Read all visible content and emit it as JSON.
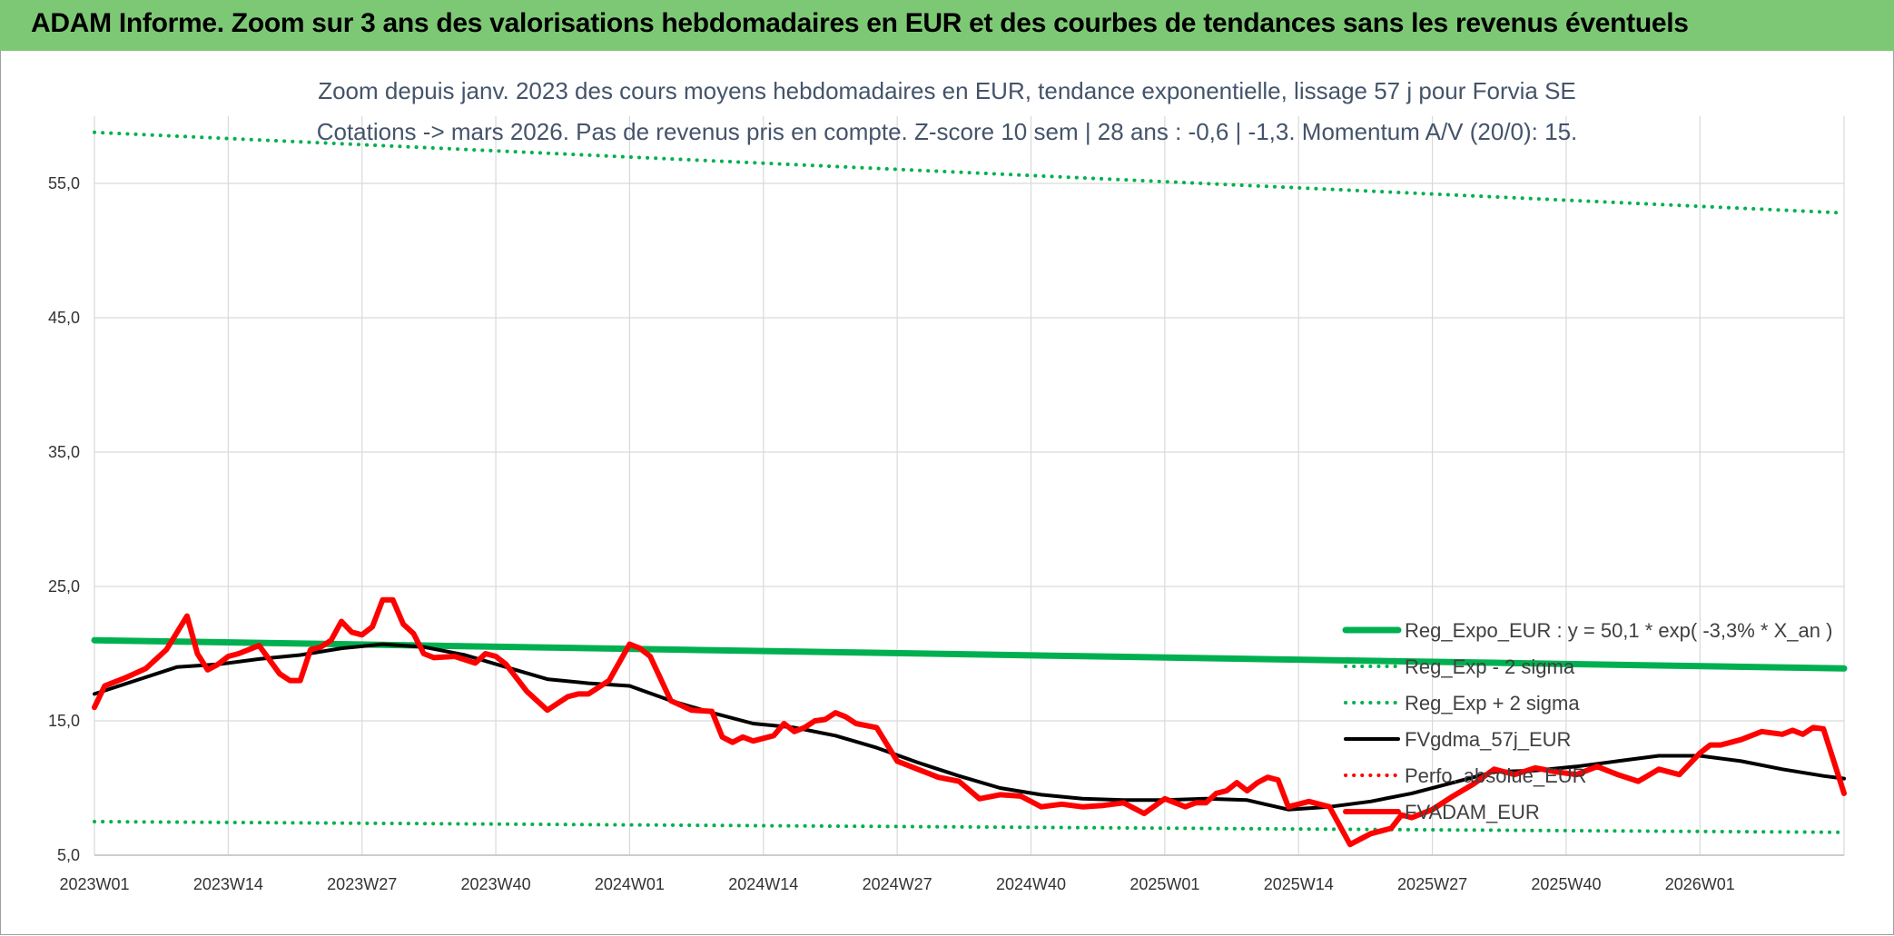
{
  "banner": {
    "title": "ADAM Informe. Zoom sur 3 ans des valorisations hebdomadaires en EUR et des courbes de tendances sans les revenus éventuels"
  },
  "colors": {
    "banner": "#7dc874",
    "trend": "#00b050",
    "sigma": "#00b050",
    "smooth": "#000000",
    "price": "#ff0000",
    "perf": "#ff0000"
  },
  "chart_data": {
    "type": "line",
    "title": "",
    "subtitle_lines": [
      "Zoom depuis janv. 2023 des cours moyens hebdomadaires en EUR, tendance exponentielle, lissage 57 j pour Forvia SE",
      "Cotations -> mars 2026. Pas de revenus pris en compte. Z-score 10 sem | 28 ans : -0,6 | -1,3. Momentum A/V (20/0): 15."
    ],
    "xlabel": "",
    "ylabel": "",
    "ylim": [
      5,
      60
    ],
    "y_ticks": [
      "5,0",
      "15,0",
      "25,0",
      "35,0",
      "45,0",
      "55,0"
    ],
    "x_ticks": [
      "2023W01",
      "2023W14",
      "2023W27",
      "2023W40",
      "2024W01",
      "2024W14",
      "2024W27",
      "2024W40",
      "2025W01",
      "2025W14",
      "2025W27",
      "2025W40",
      "2026W01"
    ],
    "weeks_per_tick": 13,
    "total_weeks": 170,
    "grid": true,
    "legend_position": "right",
    "series": [
      {
        "name": "Reg_Expo_EUR : y = 50,1 * exp( -3,3% *  X_an )",
        "style": "solid-thick",
        "color": "#00b050",
        "x": [
          0,
          170
        ],
        "values": [
          21.0,
          18.9
        ]
      },
      {
        "name": "Reg_Exp - 2 sigma",
        "style": "dotted",
        "color": "#00b050",
        "x": [
          0,
          170
        ],
        "values": [
          7.5,
          6.7
        ]
      },
      {
        "name": "Reg_Exp + 2 sigma",
        "style": "dotted",
        "color": "#00b050",
        "x": [
          0,
          170
        ],
        "values": [
          58.8,
          52.8
        ]
      },
      {
        "name": "FVgdma_57j_EUR",
        "style": "solid",
        "color": "#000000",
        "x": [
          0,
          4,
          8,
          12,
          16,
          20,
          24,
          28,
          32,
          36,
          40,
          44,
          48,
          52,
          56,
          60,
          64,
          68,
          72,
          76,
          80,
          84,
          88,
          92,
          96,
          100,
          104,
          108,
          112,
          116,
          120,
          124,
          128,
          132,
          136,
          140,
          144,
          148,
          152,
          156,
          160,
          164,
          168,
          170
        ],
        "values": [
          17.0,
          18.0,
          19.0,
          19.2,
          19.6,
          19.9,
          20.4,
          20.7,
          20.5,
          19.9,
          19.0,
          18.1,
          17.8,
          17.6,
          16.5,
          15.6,
          14.8,
          14.5,
          13.9,
          13.0,
          11.9,
          10.9,
          10.0,
          9.5,
          9.2,
          9.1,
          9.1,
          9.2,
          9.1,
          8.4,
          8.6,
          9.0,
          9.6,
          10.4,
          11.2,
          11.3,
          11.6,
          12.0,
          12.4,
          12.4,
          12.0,
          11.4,
          10.9,
          10.7
        ]
      },
      {
        "name": "Perfo. absolue_EUR",
        "style": "dotted",
        "color": "#ff0000",
        "x": [],
        "values": []
      },
      {
        "name": "FVADAM_EUR",
        "style": "solid-thick",
        "color": "#ff0000",
        "x": [
          0,
          1,
          3,
          5,
          7,
          9,
          10,
          11,
          12,
          13,
          14,
          16,
          18,
          19,
          20,
          21,
          22,
          23,
          24,
          25,
          26,
          27,
          28,
          29,
          30,
          31,
          32,
          33,
          35,
          37,
          38,
          39,
          40,
          42,
          44,
          46,
          47,
          48,
          50,
          52,
          53,
          54,
          56,
          58,
          60,
          61,
          62,
          63,
          64,
          66,
          67,
          68,
          69,
          70,
          71,
          72,
          73,
          74,
          76,
          78,
          80,
          82,
          84,
          86,
          88,
          90,
          92,
          94,
          96,
          98,
          100,
          102,
          104,
          106,
          107,
          108,
          109,
          110,
          111,
          112,
          113,
          114,
          115,
          116,
          117,
          118,
          120,
          122,
          124,
          126,
          127,
          128,
          130,
          132,
          134,
          136,
          138,
          140,
          142,
          144,
          146,
          148,
          150,
          152,
          154,
          156,
          157,
          158,
          160,
          162,
          164,
          165,
          166,
          167,
          168,
          170
        ],
        "values": [
          16.0,
          17.6,
          18.2,
          18.9,
          20.3,
          22.8,
          20.0,
          18.8,
          19.2,
          19.8,
          20.0,
          20.6,
          18.5,
          18.0,
          18.0,
          20.3,
          20.5,
          21.0,
          22.4,
          21.6,
          21.4,
          22.0,
          24.0,
          24.0,
          22.2,
          21.5,
          20.0,
          19.7,
          19.8,
          19.3,
          20.0,
          19.8,
          19.2,
          17.2,
          15.8,
          16.8,
          17.0,
          17.0,
          18.0,
          20.7,
          20.4,
          19.8,
          16.5,
          15.8,
          15.7,
          13.8,
          13.4,
          13.8,
          13.5,
          13.9,
          14.8,
          14.2,
          14.5,
          15.0,
          15.1,
          15.6,
          15.3,
          14.8,
          14.5,
          12.0,
          11.4,
          10.8,
          10.5,
          9.2,
          9.5,
          9.4,
          8.6,
          8.8,
          8.6,
          8.7,
          8.9,
          8.1,
          9.2,
          8.6,
          8.9,
          8.9,
          9.6,
          9.8,
          10.4,
          9.8,
          10.4,
          10.8,
          10.6,
          8.6,
          8.8,
          9.0,
          8.6,
          5.8,
          6.6,
          7.0,
          8.0,
          7.8,
          8.4,
          9.4,
          10.3,
          11.4,
          11.0,
          11.5,
          11.2,
          11.0,
          11.6,
          11.0,
          10.5,
          11.4,
          11.0,
          12.6,
          13.2,
          13.2,
          13.6,
          14.2,
          14.0,
          14.3,
          14.0,
          14.5,
          14.4,
          9.6
        ]
      }
    ]
  }
}
